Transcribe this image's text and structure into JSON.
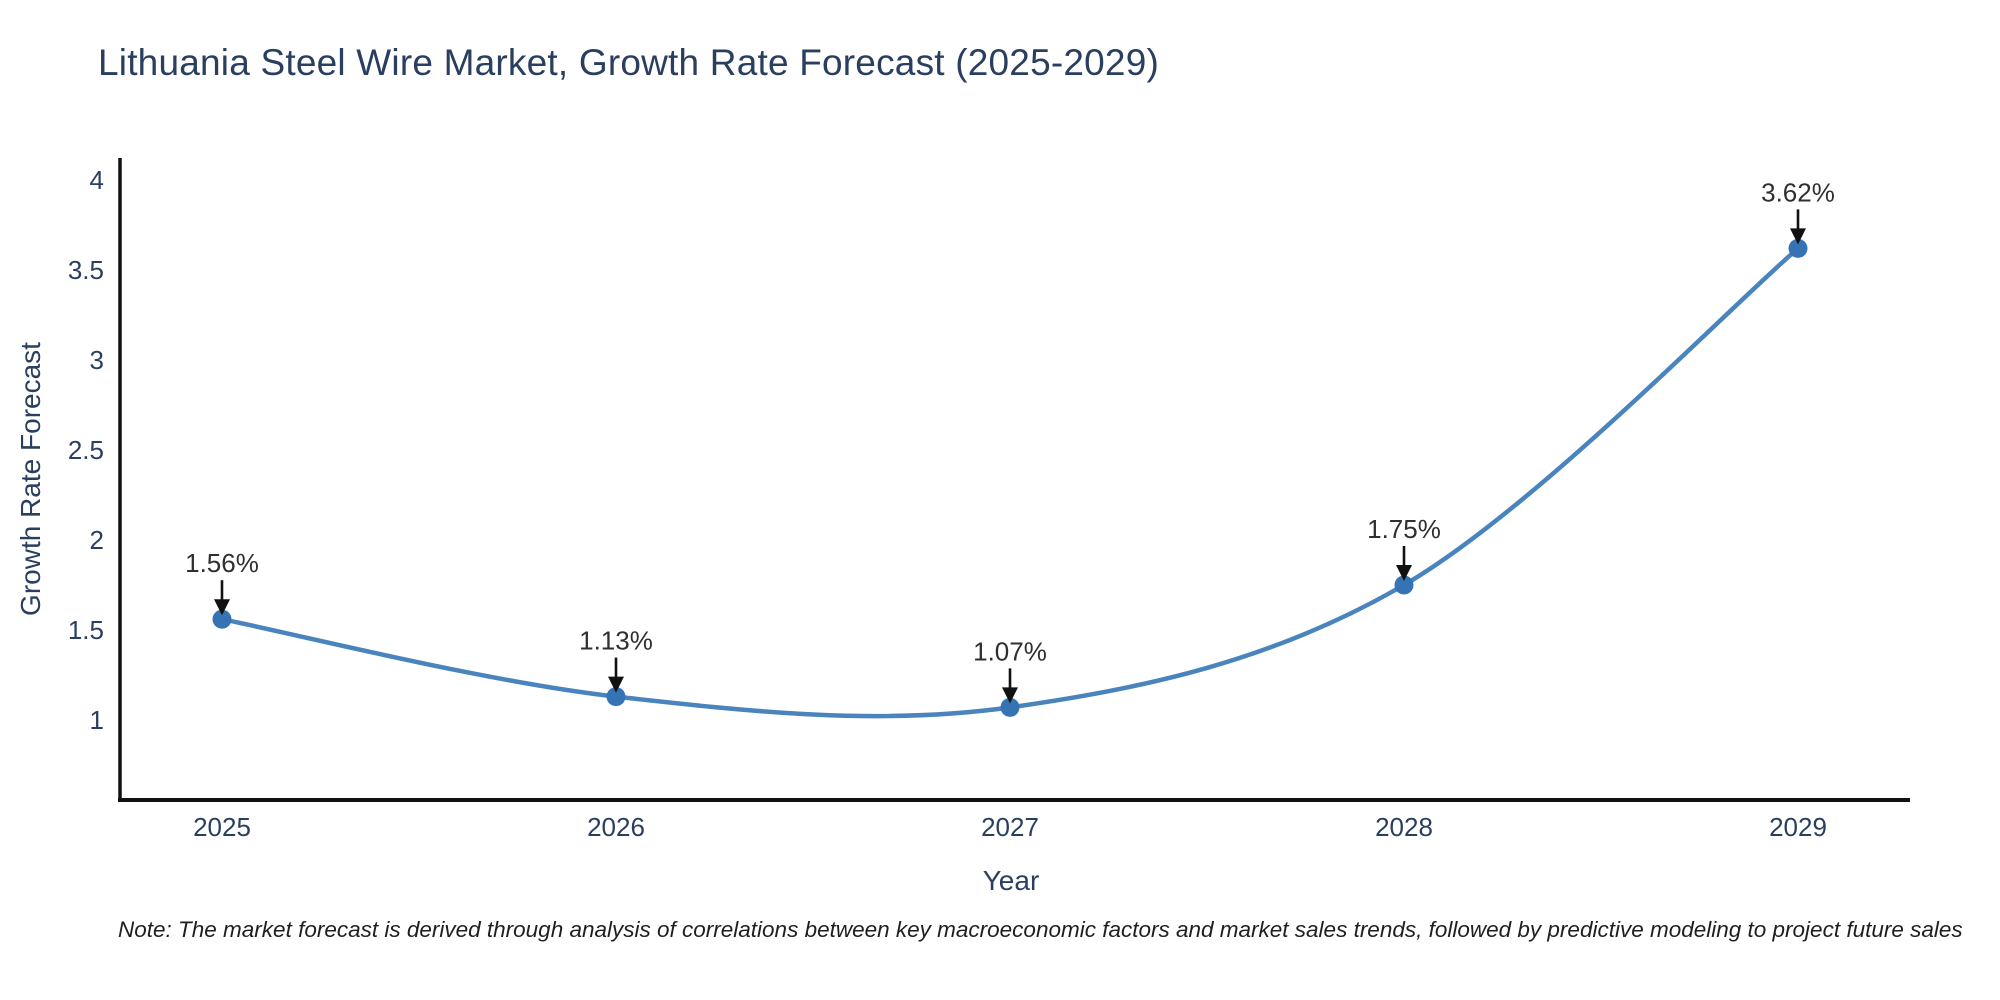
{
  "header": {
    "title": "Lithuania Steel Wire Market, Growth Rate Forecast (2025-2029)"
  },
  "chart_data": {
    "type": "line",
    "line_shape": "spline",
    "title": "Lithuania Steel Wire Market, Growth Rate Forecast (2025-2029)",
    "xlabel": "Year",
    "ylabel": "Growth Rate Forecast",
    "categories": [
      "2025",
      "2026",
      "2027",
      "2028",
      "2029"
    ],
    "series": [
      {
        "name": "Growth Rate Forecast",
        "values": [
          1.56,
          1.13,
          1.07,
          1.75,
          3.62
        ]
      }
    ],
    "point_labels": [
      "1.56%",
      "1.13%",
      "1.07%",
      "1.75%",
      "3.62%"
    ],
    "yticks": [
      1,
      1.5,
      2,
      2.5,
      3,
      3.5,
      4
    ],
    "ylim": [
      0.55,
      4.12
    ],
    "grid": false,
    "legend_position": "none",
    "annotation_arrows": true,
    "colors": {
      "line": "#4a84bc",
      "marker": "#3673b4",
      "axis": "#111111",
      "arrow": "#111111",
      "title_text": "#2a3f5f",
      "tick_text": "#2a3f5f",
      "annotation_text": "#2f2f2f"
    }
  },
  "footnote": {
    "text": "Note: The market forecast is derived through analysis of correlations between key macroeconomic factors and market sales trends, followed by predictive modeling to project future sales"
  }
}
